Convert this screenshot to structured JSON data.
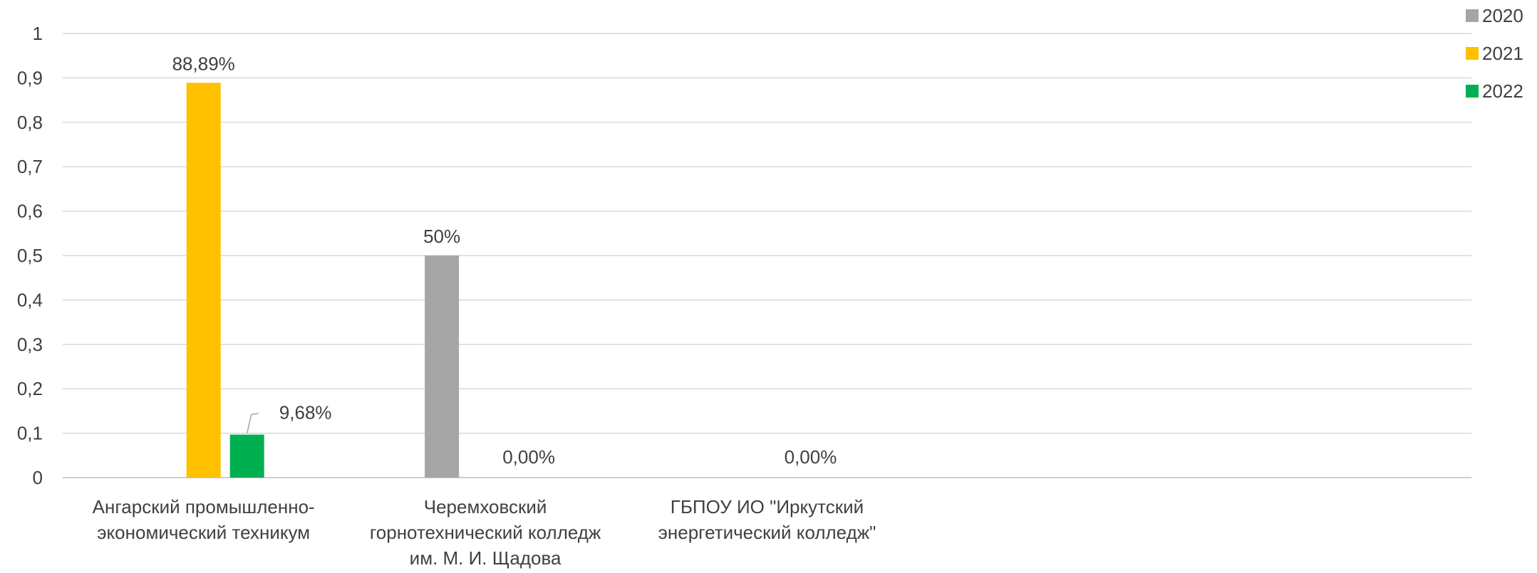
{
  "chart_data": {
    "type": "bar",
    "title": "",
    "xlabel": "",
    "ylabel": "",
    "ylim": [
      0,
      1
    ],
    "yticks": [
      "0",
      "0,1",
      "0,2",
      "0,3",
      "0,4",
      "0,5",
      "0,6",
      "0,7",
      "0,8",
      "0,9",
      "1"
    ],
    "grid": true,
    "legend_position": "top-right",
    "categories": [
      [
        "Ангарский промышленно-",
        "экономический техникум"
      ],
      [
        "Черемховский",
        "горнотехнический колледж",
        "им. М. И. Щадова"
      ],
      [
        "ГБПОУ ИО \"Иркутский",
        "энергетический колледж\""
      ]
    ],
    "series": [
      {
        "name": "2020",
        "color": "#a5a5a5",
        "values": [
          null,
          0.5,
          null
        ],
        "labels": [
          null,
          "50%",
          null
        ]
      },
      {
        "name": "2021",
        "color": "#ffc000",
        "values": [
          0.8889,
          null,
          null
        ],
        "labels": [
          "88,89%",
          null,
          null
        ]
      },
      {
        "name": "2022",
        "color": "#00b050",
        "values": [
          0.0968,
          0,
          0
        ],
        "labels": [
          "9,68%",
          "0,00%",
          "0,00%"
        ]
      }
    ]
  }
}
